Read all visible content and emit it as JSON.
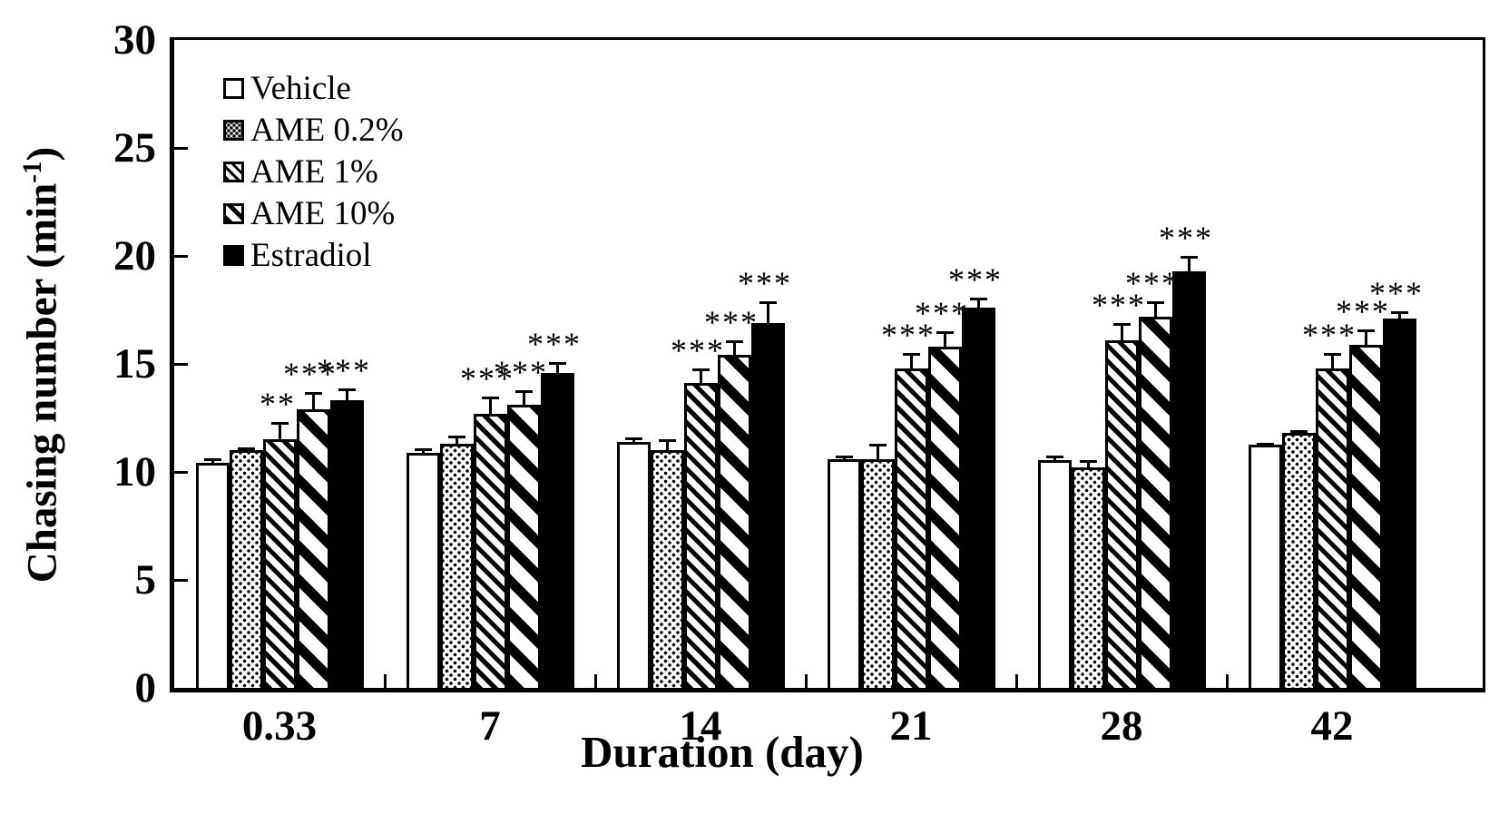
{
  "colors": {
    "foreground": "#000000",
    "background": "#ffffff"
  },
  "chart_data": {
    "type": "bar",
    "title": "",
    "xlabel": "Duration (day)",
    "ylabel": {
      "text": "Chasing number (min",
      "superscript": "-1",
      "suffix": ")"
    },
    "ylim": [
      0,
      30
    ],
    "yticks": [
      0,
      5,
      10,
      15,
      20,
      25,
      30
    ],
    "categories": [
      "0.33",
      "7",
      "14",
      "21",
      "28",
      "42"
    ],
    "grid": false,
    "legend_position": "inside-top-left",
    "series": [
      {
        "name": "Vehicle",
        "pattern": "plain",
        "values": [
          10.4,
          10.9,
          11.4,
          10.6,
          10.55,
          11.25
        ],
        "errors": [
          0.25,
          0.2,
          0.2,
          0.15,
          0.2,
          0.1
        ],
        "sig": [
          "",
          "",
          "",
          "",
          "",
          ""
        ]
      },
      {
        "name": "AME 0.2%",
        "pattern": "dots",
        "values": [
          11.0,
          11.3,
          11.0,
          10.6,
          10.2,
          11.8
        ],
        "errors": [
          0.15,
          0.4,
          0.5,
          0.7,
          0.35,
          0.15
        ],
        "sig": [
          "",
          "",
          "",
          "",
          "",
          ""
        ]
      },
      {
        "name": "AME 1%",
        "pattern": "dense",
        "values": [
          11.5,
          12.7,
          14.1,
          14.8,
          16.1,
          14.8
        ],
        "errors": [
          0.8,
          0.8,
          0.7,
          0.7,
          0.8,
          0.7
        ],
        "sig": [
          "**",
          "***",
          "***",
          "***",
          "***",
          "***"
        ]
      },
      {
        "name": "AME 10%",
        "pattern": "wide",
        "values": [
          12.9,
          13.1,
          15.4,
          15.8,
          17.2,
          15.9
        ],
        "errors": [
          0.8,
          0.7,
          0.7,
          0.7,
          0.7,
          0.7
        ],
        "sig": [
          "***",
          "***",
          "***",
          "***",
          "***",
          "***"
        ]
      },
      {
        "name": "Estradiol",
        "pattern": "solid",
        "values": [
          13.3,
          14.6,
          16.9,
          17.6,
          19.3,
          17.1
        ],
        "errors": [
          0.55,
          0.5,
          1.0,
          0.45,
          0.7,
          0.35
        ],
        "sig": [
          "***",
          "***",
          "***",
          "***",
          "***",
          "***"
        ]
      }
    ]
  }
}
